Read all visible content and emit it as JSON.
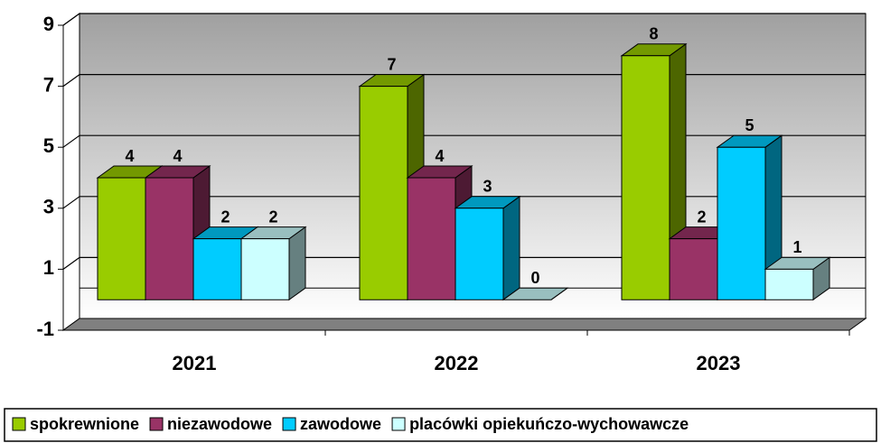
{
  "chart_data": {
    "type": "bar3d",
    "categories": [
      "2021",
      "2022",
      "2023"
    ],
    "series": [
      {
        "name": "spokrewnione",
        "color": "#99cc00",
        "values": [
          4,
          7,
          8
        ]
      },
      {
        "name": "niezawodowe",
        "color": "#993366",
        "values": [
          4,
          4,
          2
        ]
      },
      {
        "name": "zawodowe",
        "color": "#00ccff",
        "values": [
          2,
          3,
          5
        ]
      },
      {
        "name": "placówki opiekuńczo-wychowawcze",
        "color": "#ccffff",
        "values": [
          2,
          0,
          1
        ]
      }
    ],
    "ylim": [
      -1,
      9
    ],
    "yticks": [
      -1,
      1,
      3,
      5,
      7,
      9
    ],
    "grid": true,
    "legend": "bottom"
  }
}
